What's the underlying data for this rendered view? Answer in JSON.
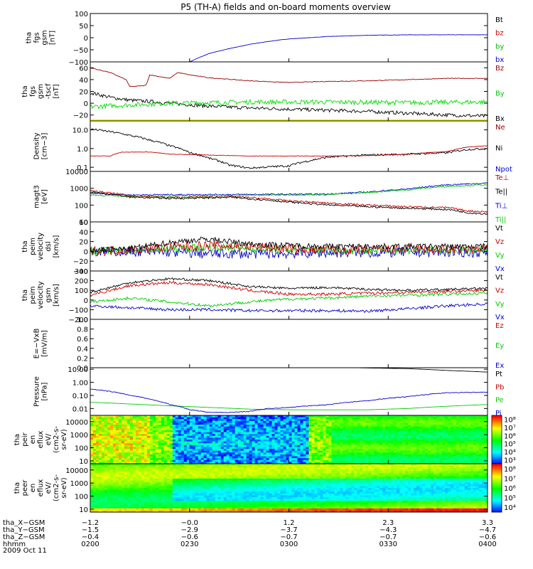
{
  "title": "P5 (TH-A) fields and on-board moments overview",
  "date_label": "2009 Oct 11",
  "chart_data": [
    {
      "type": "line",
      "ylabel": [
        "tha",
        "fgs",
        "gsm",
        "[nT]"
      ],
      "ylim": [
        -100,
        100
      ],
      "yscale": "linear",
      "ticks": [
        -100,
        -50,
        0,
        50,
        100
      ],
      "tick_labels": [
        "−100",
        "−50",
        "0",
        "50",
        "100"
      ],
      "legend": [
        {
          "label": "Bt",
          "color": "#000000"
        },
        {
          "label": "bz",
          "color": "#cc0000"
        },
        {
          "label": "by",
          "color": "#00bb00"
        },
        {
          "label": "bx",
          "color": "#0000cc"
        }
      ],
      "series": [
        {
          "color": "#0000cc",
          "noise": 0.6,
          "x": [
            0.25,
            0.27,
            0.3,
            0.35,
            0.4,
            0.45,
            0.5,
            0.6,
            0.7,
            0.8,
            1.0
          ],
          "y": [
            -100,
            -85,
            -65,
            -45,
            -28,
            -15,
            -5,
            5,
            10,
            12,
            12
          ]
        }
      ]
    },
    {
      "type": "line",
      "ylabel": [
        "tha",
        "fgs",
        "gsm",
        "-tscf",
        "[nT]"
      ],
      "ylim": [
        -30,
        70
      ],
      "yscale": "linear",
      "ticks": [
        -20,
        0,
        20,
        40,
        60
      ],
      "tick_labels": [
        "−20",
        "0",
        "20",
        "40",
        "60"
      ],
      "band": {
        "from": -30,
        "to": -27,
        "color": "#ffff00"
      },
      "legend": [
        {
          "label": "Bz",
          "color": "#990000"
        },
        {
          "label": "By",
          "color": "#00cc00"
        },
        {
          "label": "Bx",
          "color": "#000000"
        }
      ],
      "series": [
        {
          "color": "#000000",
          "noise": 3,
          "x": [
            0.0,
            0.05,
            0.1,
            0.15,
            0.2,
            0.3,
            0.4,
            0.5,
            0.6,
            0.7,
            0.8,
            0.9,
            1.0
          ],
          "y": [
            18,
            10,
            5,
            3,
            0,
            -5,
            -8,
            -10,
            -12,
            -14,
            -17,
            -20,
            -22
          ]
        },
        {
          "color": "#00dd00",
          "noise": 4,
          "x": [
            0.0,
            0.1,
            0.2,
            0.4,
            0.6,
            0.8,
            1.0
          ],
          "y": [
            -6,
            -3,
            0,
            2,
            2,
            1,
            2
          ]
        },
        {
          "color": "#990000",
          "noise": 0.6,
          "x": [
            0.0,
            0.05,
            0.09,
            0.1,
            0.14,
            0.15,
            0.2,
            0.22,
            0.25,
            0.3,
            0.4,
            0.5,
            0.6,
            0.7,
            0.8,
            0.9,
            1.0
          ],
          "y": [
            60,
            52,
            40,
            28,
            30,
            48,
            42,
            52,
            48,
            43,
            38,
            35,
            37,
            38,
            40,
            42,
            42
          ]
        }
      ]
    },
    {
      "type": "line",
      "ylabel": [
        "Density",
        "[cm−3]"
      ],
      "ylim": [
        0.06,
        30
      ],
      "yscale": "log",
      "ticks": [
        0.1,
        1.0,
        10.0
      ],
      "tick_labels": [
        "0.1",
        "1.0",
        "10.0"
      ],
      "legend": [
        {
          "label": "Ne",
          "color": "#990000"
        },
        {
          "label": "Ni",
          "color": "#000000"
        },
        {
          "label": "Npot",
          "color": "#0000cc"
        }
      ],
      "series": [
        {
          "color": "#000000",
          "noise": 0.04,
          "x": [
            0.0,
            0.05,
            0.1,
            0.15,
            0.2,
            0.25,
            0.3,
            0.35,
            0.4,
            0.5,
            0.55,
            0.6,
            0.7,
            0.8,
            0.9,
            0.95,
            1.0
          ],
          "y": [
            11,
            8,
            5,
            2.8,
            1.4,
            0.6,
            0.3,
            0.13,
            0.09,
            0.12,
            0.22,
            0.35,
            0.45,
            0.5,
            0.6,
            0.9,
            1.0
          ]
        },
        {
          "color": "#cc0000",
          "noise": 0.01,
          "x": [
            0.0,
            0.05,
            0.08,
            0.15,
            0.2,
            0.3,
            0.4,
            0.5,
            0.6,
            0.7,
            0.8,
            0.9,
            0.95,
            1.0
          ],
          "y": [
            0.4,
            0.4,
            0.65,
            0.65,
            0.5,
            0.45,
            0.4,
            0.4,
            0.4,
            0.42,
            0.5,
            0.7,
            1.2,
            1.4
          ]
        }
      ]
    },
    {
      "type": "line",
      "ylabel": [
        "magt3",
        "[eV]"
      ],
      "ylim": [
        10,
        10000
      ],
      "yscale": "log",
      "ticks": [
        10,
        100,
        1000,
        10000
      ],
      "tick_labels": [
        "10",
        "100",
        "1000",
        "10000"
      ],
      "legend": [
        {
          "label": "Te⊥",
          "color": "#cc0000"
        },
        {
          "label": "Te||",
          "color": "#000000"
        },
        {
          "label": "Ti⊥",
          "color": "#0000cc"
        },
        {
          "label": "Ti||",
          "color": "#00cc00"
        }
      ],
      "series": [
        {
          "color": "#0000cc",
          "noise": 0.03,
          "x": [
            0.0,
            0.1,
            0.2,
            0.3,
            0.4,
            0.5,
            0.6,
            0.7,
            0.8,
            0.9,
            1.0
          ],
          "y": [
            500,
            400,
            420,
            420,
            430,
            440,
            450,
            600,
            900,
            1600,
            2000
          ]
        },
        {
          "color": "#00cc00",
          "noise": 0.03,
          "x": [
            0.0,
            0.1,
            0.2,
            0.3,
            0.4,
            0.5,
            0.6,
            0.7,
            0.8,
            0.9,
            1.0
          ],
          "y": [
            400,
            320,
            350,
            360,
            380,
            400,
            420,
            550,
            800,
            1300,
            1600
          ]
        },
        {
          "color": "#cc0000",
          "noise": 0.04,
          "x": [
            0.0,
            0.1,
            0.2,
            0.3,
            0.35,
            0.4,
            0.5,
            0.6,
            0.7,
            0.8,
            0.9,
            0.95,
            1.0
          ],
          "y": [
            700,
            350,
            280,
            300,
            320,
            280,
            180,
            130,
            100,
            80,
            70,
            45,
            40
          ]
        },
        {
          "color": "#000000",
          "noise": 0.04,
          "x": [
            0.0,
            0.1,
            0.2,
            0.3,
            0.35,
            0.4,
            0.5,
            0.6,
            0.7,
            0.8,
            0.9,
            0.95,
            1.0
          ],
          "y": [
            600,
            300,
            250,
            270,
            290,
            240,
            150,
            100,
            80,
            65,
            55,
            35,
            30
          ]
        }
      ]
    },
    {
      "type": "line",
      "ylabel": [
        "tha",
        "peim",
        "velocity",
        "dsl",
        "[km/s]"
      ],
      "ylim": [
        -40,
        60
      ],
      "yscale": "linear",
      "ticks": [
        -40,
        -20,
        0,
        20,
        40,
        60
      ],
      "tick_labels": [
        "−40",
        "−20",
        "0",
        "20",
        "40",
        "60"
      ],
      "legend": [
        {
          "label": "Vt",
          "color": "#000000"
        },
        {
          "label": "Vz",
          "color": "#cc0000"
        },
        {
          "label": "Vy",
          "color": "#00cc00"
        },
        {
          "label": "Vx",
          "color": "#0000cc"
        }
      ],
      "series": [
        {
          "color": "#0000cc",
          "noise": 10,
          "x": [
            0.0,
            0.1,
            0.2,
            0.3,
            0.4,
            0.5,
            0.6,
            0.7,
            0.8,
            0.9,
            1.0
          ],
          "y": [
            0,
            0,
            -2,
            -5,
            -5,
            -5,
            -3,
            -3,
            -2,
            -2,
            -2
          ]
        },
        {
          "color": "#00cc00",
          "noise": 8,
          "x": [
            0.0,
            0.1,
            0.2,
            0.3,
            0.4,
            0.5,
            0.6,
            0.7,
            0.8,
            0.9,
            1.0
          ],
          "y": [
            0,
            2,
            5,
            8,
            6,
            3,
            2,
            2,
            2,
            2,
            2
          ]
        },
        {
          "color": "#cc0000",
          "noise": 10,
          "x": [
            0.0,
            0.1,
            0.2,
            0.3,
            0.4,
            0.5,
            0.6,
            0.7,
            0.8,
            0.9,
            1.0
          ],
          "y": [
            0,
            3,
            8,
            12,
            10,
            5,
            3,
            3,
            4,
            4,
            4
          ]
        },
        {
          "color": "#000000",
          "noise": 6,
          "x": [
            0.0,
            0.1,
            0.15,
            0.2,
            0.25,
            0.3,
            0.35,
            0.4,
            0.5,
            0.6,
            0.7,
            0.8,
            0.9,
            1.0
          ],
          "y": [
            2,
            5,
            12,
            18,
            22,
            25,
            20,
            15,
            12,
            10,
            10,
            10,
            10,
            10
          ]
        }
      ]
    },
    {
      "type": "line",
      "ylabel": [
        "tha",
        "peim",
        "velocity",
        "gsm",
        "[km/s]"
      ],
      "ylim": [
        -200,
        300
      ],
      "yscale": "linear",
      "ticks": [
        -200,
        -100,
        0,
        100,
        200,
        300
      ],
      "tick_labels": [
        "−200",
        "−100",
        "0",
        "100",
        "200",
        "300"
      ],
      "legend": [
        {
          "label": "Vt",
          "color": "#000000"
        },
        {
          "label": "Vz",
          "color": "#cc0000"
        },
        {
          "label": "Vy",
          "color": "#00cc00"
        },
        {
          "label": "Vx",
          "color": "#0000cc"
        }
      ],
      "series": [
        {
          "color": "#0000cc",
          "noise": 15,
          "x": [
            0.0,
            0.1,
            0.2,
            0.3,
            0.4,
            0.5,
            0.6,
            0.7,
            0.8,
            0.9,
            1.0
          ],
          "y": [
            -60,
            -80,
            -100,
            -100,
            -110,
            -110,
            -110,
            -115,
            -90,
            -60,
            -40
          ]
        },
        {
          "color": "#00cc00",
          "noise": 15,
          "x": [
            0.0,
            0.1,
            0.2,
            0.3,
            0.4,
            0.5,
            0.6,
            0.7,
            0.8,
            0.9,
            1.0
          ],
          "y": [
            -20,
            20,
            -20,
            -60,
            -20,
            10,
            20,
            40,
            50,
            60,
            70
          ]
        },
        {
          "color": "#cc0000",
          "noise": 15,
          "x": [
            0.0,
            0.1,
            0.2,
            0.3,
            0.4,
            0.5,
            0.6,
            0.7,
            0.8,
            0.9,
            1.0
          ],
          "y": [
            50,
            150,
            180,
            160,
            100,
            60,
            60,
            70,
            80,
            90,
            100
          ]
        },
        {
          "color": "#000000",
          "noise": 12,
          "x": [
            0.0,
            0.1,
            0.2,
            0.3,
            0.4,
            0.5,
            0.6,
            0.7,
            0.8,
            0.9,
            1.0
          ],
          "y": [
            80,
            180,
            220,
            200,
            140,
            120,
            130,
            110,
            100,
            110,
            120
          ]
        }
      ]
    },
    {
      "type": "line",
      "ylabel": [
        "E=−VxB",
        "[mV/m]"
      ],
      "ylim": [
        0,
        1
      ],
      "yscale": "linear",
      "ticks": [
        0,
        0.2,
        0.4,
        0.6,
        0.8,
        1.0
      ],
      "tick_labels": [
        "0.0",
        "0.2",
        "0.4",
        "0.6",
        "0.8",
        "1.0"
      ],
      "legend": [
        {
          "label": "Ez",
          "color": "#cc0000"
        },
        {
          "label": "Ey",
          "color": "#00cc00"
        },
        {
          "label": "Ex",
          "color": "#0000cc"
        }
      ],
      "series": []
    },
    {
      "type": "line",
      "ylabel": [
        "Pressure",
        "[nPa]"
      ],
      "ylim": [
        0.003,
        13
      ],
      "yscale": "log",
      "ticks": [
        0.01,
        0.1,
        1.0,
        10.0
      ],
      "tick_labels": [
        "0.01",
        "0.10",
        "1.00",
        "10.00"
      ],
      "legend": [
        {
          "label": "Pt",
          "color": "#000000"
        },
        {
          "label": "Pb",
          "color": "#cc0000"
        },
        {
          "label": "Pe",
          "color": "#00cc00"
        },
        {
          "label": "Pi",
          "color": "#0000cc"
        }
      ],
      "series": [
        {
          "color": "#000000",
          "noise": 0,
          "x": [
            0.66,
            0.8,
            0.9,
            1.0
          ],
          "y": [
            13,
            11,
            8,
            6
          ]
        },
        {
          "color": "#00cc00",
          "noise": 0,
          "x": [
            0.0,
            0.1,
            0.2,
            0.3,
            0.4,
            0.5,
            0.6,
            0.7,
            0.8,
            0.9,
            1.0
          ],
          "y": [
            0.03,
            0.022,
            0.016,
            0.012,
            0.009,
            0.008,
            0.008,
            0.008,
            0.01,
            0.015,
            0.02
          ]
        },
        {
          "color": "#0000cc",
          "noise": 0.02,
          "x": [
            0.0,
            0.05,
            0.1,
            0.15,
            0.2,
            0.25,
            0.3,
            0.35,
            0.4,
            0.45,
            0.5,
            0.6,
            0.7,
            0.8,
            0.9,
            1.0
          ],
          "y": [
            0.3,
            0.2,
            0.1,
            0.05,
            0.02,
            0.008,
            0.005,
            0.005,
            0.006,
            0.01,
            0.012,
            0.02,
            0.04,
            0.08,
            0.16,
            0.18
          ]
        }
      ]
    },
    {
      "type": "heatmap",
      "ylabel": [
        "tha",
        "peir",
        "en",
        "eflux",
        "eV/",
        "(cm2-s-",
        "sr-eV)"
      ],
      "ylim": [
        6,
        30000
      ],
      "yscale": "log",
      "ticks": [
        10,
        100,
        1000,
        10000
      ],
      "tick_labels": [
        "10",
        "100",
        "1000",
        "10000"
      ],
      "colorbar_ticks": [
        "10³",
        "10⁴",
        "10⁵",
        "10⁶",
        "10⁷",
        "10⁸"
      ]
    },
    {
      "type": "heatmap",
      "ylabel": [
        "tha",
        "peer",
        "en",
        "eflux",
        "eV/",
        "(cm2-s-",
        "sr-eV)"
      ],
      "ylim": [
        6,
        30000
      ],
      "yscale": "log",
      "ticks": [
        10,
        100,
        1000,
        10000
      ],
      "tick_labels": [
        "10",
        "100",
        "1000",
        "10000"
      ],
      "colorbar_ticks": [
        "10⁴",
        "10⁵",
        "10⁶",
        "10⁷",
        "10⁸"
      ]
    }
  ],
  "x_axis": {
    "ticks": [
      0,
      0.25,
      0.5,
      0.75,
      1.0
    ],
    "rows": [
      {
        "label": "tha_X−GSM",
        "values": [
          "−1.2",
          "−0.0",
          "1.2",
          "2.3",
          "3.3"
        ]
      },
      {
        "label": "tha_Y−GSM",
        "values": [
          "−1.5",
          "−2.9",
          "−3.7",
          "−4.3",
          "−4.7"
        ]
      },
      {
        "label": "tha_Z−GSM",
        "values": [
          "−0.4",
          "−0.6",
          "−0.7",
          "−0.7",
          "−0.6"
        ]
      },
      {
        "label": "hhmm",
        "values": [
          "0200",
          "0230",
          "0300",
          "0330",
          "0400"
        ]
      }
    ]
  }
}
